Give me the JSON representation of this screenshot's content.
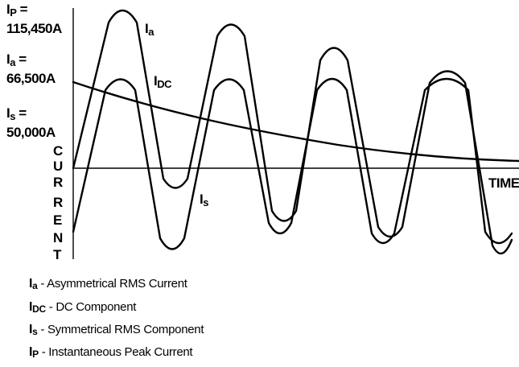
{
  "labels": {
    "ip": {
      "symbol": "I",
      "sub": "P",
      "eq": " =",
      "value": "115,450A"
    },
    "ia": {
      "symbol": "I",
      "sub": "a",
      "eq": " =",
      "value": "66,500A"
    },
    "is": {
      "symbol": "I",
      "sub": "s",
      "eq": " =",
      "value": "50,000A"
    }
  },
  "axis": {
    "y_letters": [
      "C",
      "U",
      "R",
      "R",
      "E",
      "N",
      "T"
    ],
    "x_label": "TIME"
  },
  "curve_labels": {
    "ia": {
      "symbol": "I",
      "sub": "a"
    },
    "idc": {
      "symbol": "I",
      "sub": "DC"
    },
    "is": {
      "symbol": "I",
      "sub": "s"
    }
  },
  "legend": [
    {
      "symbol": "I",
      "sub": "a",
      "text": " - Asymmetrical RMS Current"
    },
    {
      "symbol": "I",
      "sub": "DC",
      "text": " - DC Component"
    },
    {
      "symbol": "I",
      "sub": "s",
      "text": " - Symmetrical RMS Component"
    },
    {
      "symbol": "I",
      "sub": "P",
      "text": " - Instantaneous Peak Current"
    }
  ]
}
